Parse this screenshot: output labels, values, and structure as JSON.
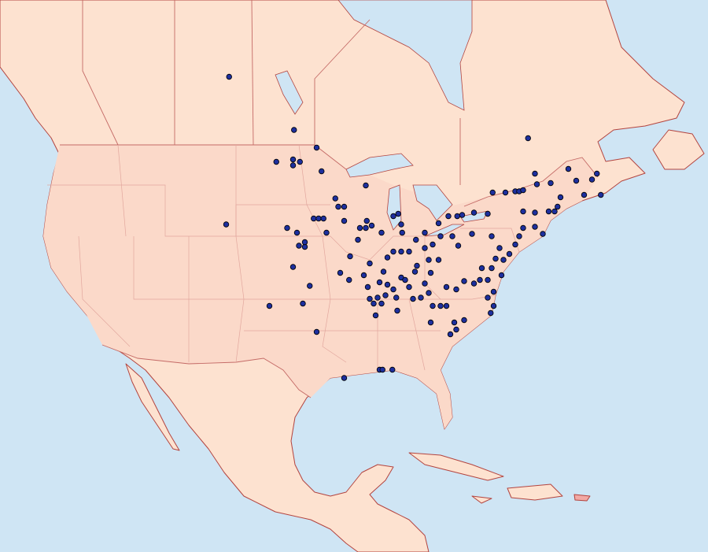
{
  "map": {
    "points": [
      {
        "lon": -104.1,
        "lat": 55.1
      },
      {
        "lon": -97.5,
        "lat": 50.6
      },
      {
        "lon": -95.2,
        "lat": 49.1
      },
      {
        "lon": -99.3,
        "lat": 47.9
      },
      {
        "lon": -97.6,
        "lat": 48.1
      },
      {
        "lon": -96.9,
        "lat": 47.9
      },
      {
        "lon": -97.6,
        "lat": 47.6
      },
      {
        "lon": -94.7,
        "lat": 47.1
      },
      {
        "lon": -90.2,
        "lat": 45.9
      },
      {
        "lon": -93.3,
        "lat": 44.8
      },
      {
        "lon": -93.0,
        "lat": 44.1
      },
      {
        "lon": -92.4,
        "lat": 44.1
      },
      {
        "lon": -95.5,
        "lat": 43.1
      },
      {
        "lon": -95.0,
        "lat": 43.1
      },
      {
        "lon": -94.5,
        "lat": 43.1
      },
      {
        "lon": -104.4,
        "lat": 42.6
      },
      {
        "lon": -98.2,
        "lat": 42.3
      },
      {
        "lon": -97.2,
        "lat": 41.9
      },
      {
        "lon": -97.0,
        "lat": 40.8
      },
      {
        "lon": -96.4,
        "lat": 40.7
      },
      {
        "lon": -96.4,
        "lat": 41.1
      },
      {
        "lon": -94.2,
        "lat": 41.9
      },
      {
        "lon": -92.4,
        "lat": 42.9
      },
      {
        "lon": -90.8,
        "lat": 42.3
      },
      {
        "lon": -90.1,
        "lat": 42.9
      },
      {
        "lon": -90.2,
        "lat": 42.3
      },
      {
        "lon": -89.6,
        "lat": 42.5
      },
      {
        "lon": -91.0,
        "lat": 41.3
      },
      {
        "lon": -88.6,
        "lat": 41.9
      },
      {
        "lon": -87.4,
        "lat": 43.3
      },
      {
        "lon": -86.9,
        "lat": 43.5
      },
      {
        "lon": -86.6,
        "lat": 42.6
      },
      {
        "lon": -86.5,
        "lat": 41.9
      },
      {
        "lon": -85.1,
        "lat": 41.3
      },
      {
        "lon": -84.2,
        "lat": 41.9
      },
      {
        "lon": -82.8,
        "lat": 42.7
      },
      {
        "lon": -81.8,
        "lat": 43.3
      },
      {
        "lon": -80.9,
        "lat": 43.3
      },
      {
        "lon": -80.4,
        "lat": 43.4
      },
      {
        "lon": -79.2,
        "lat": 43.6
      },
      {
        "lon": -77.8,
        "lat": 43.5
      },
      {
        "lon": -77.3,
        "lat": 45.3
      },
      {
        "lon": -76.0,
        "lat": 45.3
      },
      {
        "lon": -75.0,
        "lat": 45.4
      },
      {
        "lon": -74.6,
        "lat": 45.4
      },
      {
        "lon": -74.2,
        "lat": 45.5
      },
      {
        "lon": -73.0,
        "lat": 46.9
      },
      {
        "lon": -72.8,
        "lat": 46.0
      },
      {
        "lon": -71.4,
        "lat": 46.1
      },
      {
        "lon": -69.6,
        "lat": 47.3
      },
      {
        "lon": -68.8,
        "lat": 46.3
      },
      {
        "lon": -68.0,
        "lat": 45.1
      },
      {
        "lon": -67.2,
        "lat": 46.4
      },
      {
        "lon": -66.7,
        "lat": 46.9
      },
      {
        "lon": -66.3,
        "lat": 45.1
      },
      {
        "lon": -70.4,
        "lat": 44.9
      },
      {
        "lon": -70.7,
        "lat": 44.1
      },
      {
        "lon": -71.0,
        "lat": 43.7
      },
      {
        "lon": -71.6,
        "lat": 43.7
      },
      {
        "lon": -73.0,
        "lat": 43.6
      },
      {
        "lon": -74.2,
        "lat": 43.7
      },
      {
        "lon": -73.0,
        "lat": 42.4
      },
      {
        "lon": -72.2,
        "lat": 41.8
      },
      {
        "lon": -74.2,
        "lat": 42.3
      },
      {
        "lon": -74.6,
        "lat": 41.6
      },
      {
        "lon": -75.0,
        "lat": 40.9
      },
      {
        "lon": -75.6,
        "lat": 40.1
      },
      {
        "lon": -76.2,
        "lat": 39.6
      },
      {
        "lon": -77.0,
        "lat": 39.7
      },
      {
        "lon": -77.4,
        "lat": 38.9
      },
      {
        "lon": -78.4,
        "lat": 38.9
      },
      {
        "lon": -77.8,
        "lat": 37.9
      },
      {
        "lon": -78.6,
        "lat": 37.9
      },
      {
        "lon": -79.2,
        "lat": 37.6
      },
      {
        "lon": -77.2,
        "lat": 36.9
      },
      {
        "lon": -77.8,
        "lat": 36.4
      },
      {
        "lon": -77.2,
        "lat": 35.7
      },
      {
        "lon": -77.5,
        "lat": 35.1
      },
      {
        "lon": -80.2,
        "lat": 37.8
      },
      {
        "lon": -81.0,
        "lat": 37.1
      },
      {
        "lon": -82.0,
        "lat": 37.3
      },
      {
        "lon": -82.6,
        "lat": 35.7
      },
      {
        "lon": -83.4,
        "lat": 35.7
      },
      {
        "lon": -83.6,
        "lat": 34.3
      },
      {
        "lon": -81.2,
        "lat": 34.3
      },
      {
        "lon": -81.0,
        "lat": 33.7
      },
      {
        "lon": -80.2,
        "lat": 34.5
      },
      {
        "lon": -81.6,
        "lat": 33.3
      },
      {
        "lon": -82.0,
        "lat": 35.7
      },
      {
        "lon": -87.0,
        "lat": 35.3
      },
      {
        "lon": -89.2,
        "lat": 34.9
      },
      {
        "lon": -89.4,
        "lat": 35.9
      },
      {
        "lon": -89.8,
        "lat": 36.3
      },
      {
        "lon": -89.0,
        "lat": 36.4
      },
      {
        "lon": -88.2,
        "lat": 36.6
      },
      {
        "lon": -87.4,
        "lat": 37.1
      },
      {
        "lon": -86.6,
        "lat": 38.1
      },
      {
        "lon": -86.2,
        "lat": 37.9
      },
      {
        "lon": -85.8,
        "lat": 37.3
      },
      {
        "lon": -85.4,
        "lat": 36.3
      },
      {
        "lon": -84.6,
        "lat": 36.4
      },
      {
        "lon": -83.8,
        "lat": 36.8
      },
      {
        "lon": -84.2,
        "lat": 37.6
      },
      {
        "lon": -83.6,
        "lat": 38.5
      },
      {
        "lon": -82.8,
        "lat": 39.6
      },
      {
        "lon": -83.8,
        "lat": 39.6
      },
      {
        "lon": -84.2,
        "lat": 40.6
      },
      {
        "lon": -83.4,
        "lat": 40.9
      },
      {
        "lon": -82.6,
        "lat": 41.6
      },
      {
        "lon": -81.4,
        "lat": 41.6
      },
      {
        "lon": -80.8,
        "lat": 40.8
      },
      {
        "lon": -79.4,
        "lat": 41.8
      },
      {
        "lon": -85.0,
        "lat": 39.1
      },
      {
        "lon": -85.2,
        "lat": 38.6
      },
      {
        "lon": -88.0,
        "lat": 39.8
      },
      {
        "lon": -87.4,
        "lat": 40.3
      },
      {
        "lon": -86.6,
        "lat": 40.3
      },
      {
        "lon": -85.8,
        "lat": 40.3
      },
      {
        "lon": -89.8,
        "lat": 39.3
      },
      {
        "lon": -90.4,
        "lat": 38.3
      },
      {
        "lon": -91.8,
        "lat": 39.9
      },
      {
        "lon": -92.8,
        "lat": 38.5
      },
      {
        "lon": -91.9,
        "lat": 37.9
      },
      {
        "lon": -88.4,
        "lat": 38.6
      },
      {
        "lon": -88.8,
        "lat": 37.7
      },
      {
        "lon": -88.0,
        "lat": 37.5
      },
      {
        "lon": -90.0,
        "lat": 37.3
      },
      {
        "lon": -88.6,
        "lat": 35.9
      },
      {
        "lon": -87.1,
        "lat": 36.4
      },
      {
        "lon": -97.6,
        "lat": 39.0
      },
      {
        "lon": -95.9,
        "lat": 37.4
      },
      {
        "lon": -96.6,
        "lat": 35.9
      },
      {
        "lon": -95.2,
        "lat": 33.5
      },
      {
        "lon": -100.0,
        "lat": 35.7
      },
      {
        "lon": -92.4,
        "lat": 29.6
      },
      {
        "lon": -88.8,
        "lat": 30.3
      },
      {
        "lon": -87.5,
        "lat": 30.3
      },
      {
        "lon": -88.5,
        "lat": 30.3
      },
      {
        "lon": -73.7,
        "lat": 49.9
      },
      {
        "lon": -77.4,
        "lat": 41.6
      },
      {
        "lon": -76.6,
        "lat": 40.6
      },
      {
        "lon": -76.4,
        "lat": 38.3
      }
    ]
  }
}
